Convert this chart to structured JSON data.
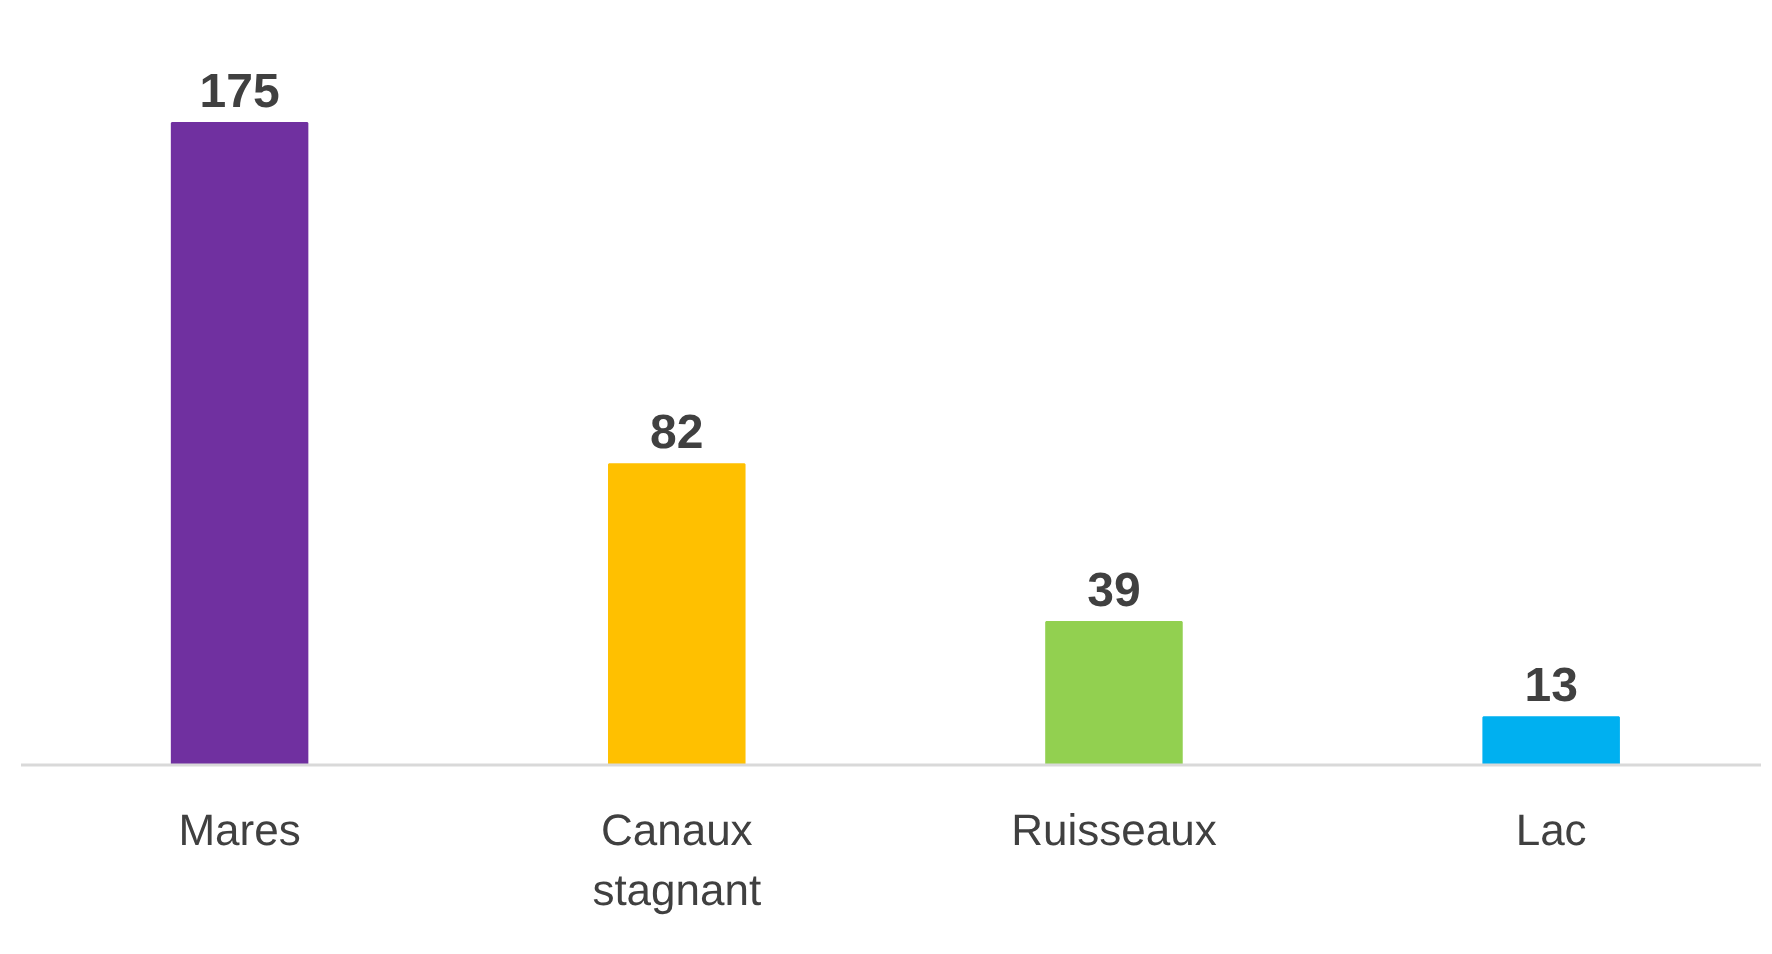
{
  "chart_data": {
    "type": "bar",
    "categories": [
      "Mares",
      "Canaux stagnant",
      "Ruisseaux",
      "Lac"
    ],
    "values": [
      175,
      82,
      39,
      13
    ],
    "colors": [
      "#7030a0",
      "#ffc000",
      "#92d050",
      "#00b0f0"
    ],
    "data_labels": true,
    "grid": false
  }
}
